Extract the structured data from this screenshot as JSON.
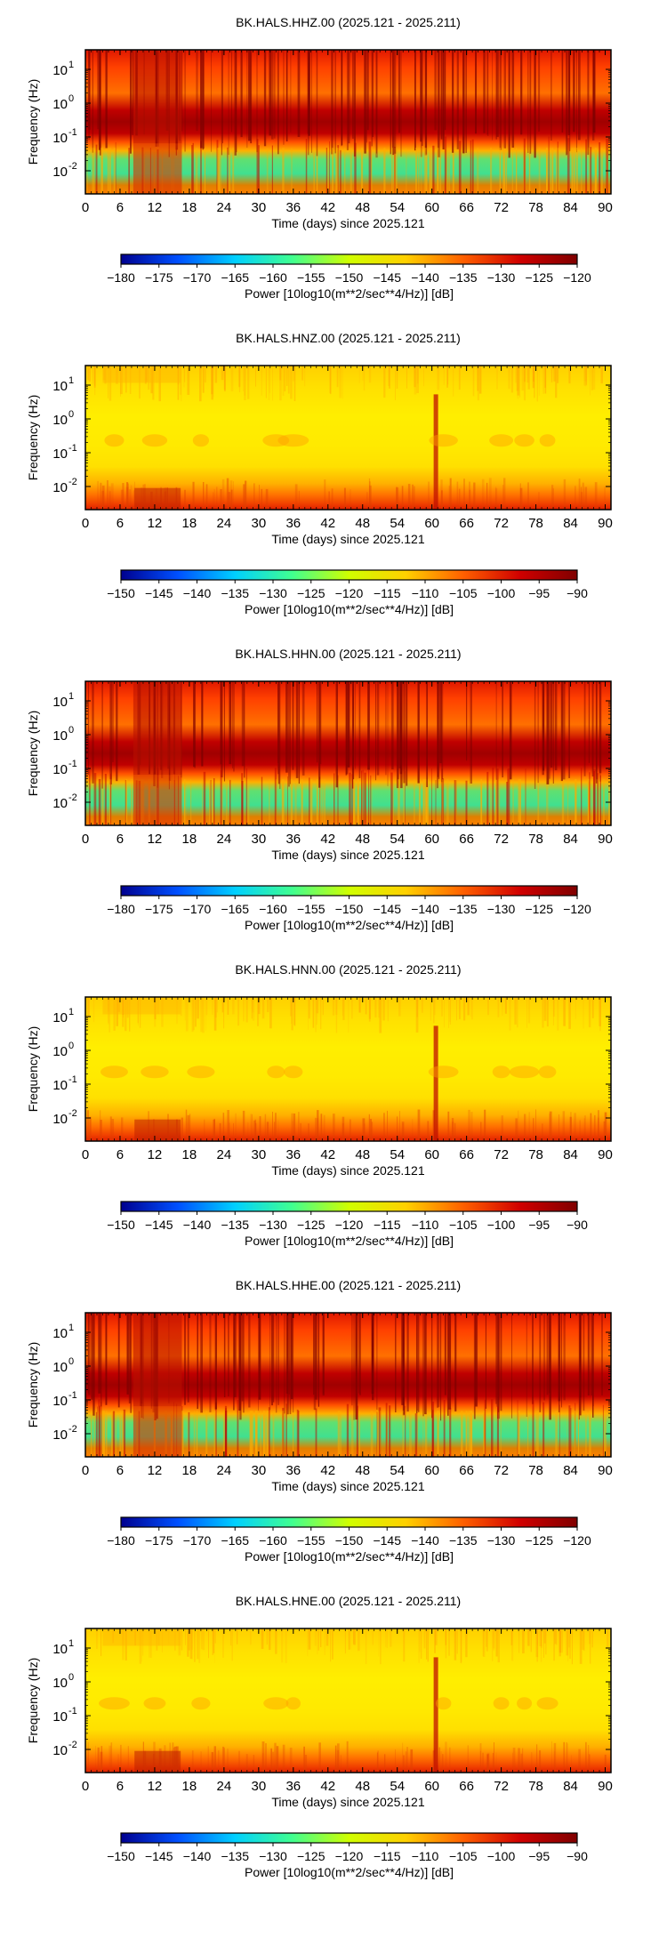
{
  "chart_data": [
    {
      "type": "heatmap",
      "title": "BK.HALS.HHZ.00 (2025.121 - 2025.211)",
      "xlabel": "Time (days) since 2025.121",
      "ylabel": "Frequency (Hz)",
      "xlim": [
        0,
        91
      ],
      "x_ticks": [
        "0",
        "6",
        "12",
        "18",
        "24",
        "30",
        "36",
        "42",
        "48",
        "54",
        "60",
        "66",
        "72",
        "78",
        "84",
        "90"
      ],
      "y_scale": "log",
      "y_ticks": [
        {
          "exp": "1"
        },
        {
          "exp": "0"
        },
        {
          "exp": "-1"
        },
        {
          "exp": "-2"
        }
      ],
      "y_tick_base": "10",
      "colorbar": {
        "label": "Power [10log10(m**2/sec**4/Hz)] [dB]",
        "ticks": [
          "−180",
          "−175",
          "−170",
          "−165",
          "−160",
          "−155",
          "−150",
          "−145",
          "−140",
          "−135",
          "−130",
          "−125",
          "−120"
        ],
        "colormap": [
          "#00008f",
          "#0050ff",
          "#00d0ff",
          "#40ff90",
          "#d0ff00",
          "#ffd000",
          "#ff6000",
          "#d00000",
          "#800000"
        ]
      },
      "style": "red"
    },
    {
      "type": "heatmap",
      "title": "BK.HALS.HNZ.00 (2025.121 - 2025.211)",
      "xlabel": "Time (days) since 2025.121",
      "ylabel": "Frequency (Hz)",
      "xlim": [
        0,
        91
      ],
      "x_ticks": [
        "0",
        "6",
        "12",
        "18",
        "24",
        "30",
        "36",
        "42",
        "48",
        "54",
        "60",
        "66",
        "72",
        "78",
        "84",
        "90"
      ],
      "y_scale": "log",
      "y_ticks": [
        {
          "exp": "1"
        },
        {
          "exp": "0"
        },
        {
          "exp": "-1"
        },
        {
          "exp": "-2"
        }
      ],
      "y_tick_base": "10",
      "colorbar": {
        "label": "Power [10log10(m**2/sec**4/Hz)] [dB]",
        "ticks": [
          "−150",
          "−145",
          "−140",
          "−135",
          "−130",
          "−125",
          "−120",
          "−115",
          "−110",
          "−105",
          "−100",
          "−95",
          "−90"
        ],
        "colormap": [
          "#00008f",
          "#0050ff",
          "#00d0ff",
          "#40ff90",
          "#d0ff00",
          "#ffd000",
          "#ff6000",
          "#d00000",
          "#800000"
        ]
      },
      "style": "yellow"
    },
    {
      "type": "heatmap",
      "title": "BK.HALS.HHN.00 (2025.121 - 2025.211)",
      "xlabel": "Time (days) since 2025.121",
      "ylabel": "Frequency (Hz)",
      "xlim": [
        0,
        91
      ],
      "x_ticks": [
        "0",
        "6",
        "12",
        "18",
        "24",
        "30",
        "36",
        "42",
        "48",
        "54",
        "60",
        "66",
        "72",
        "78",
        "84",
        "90"
      ],
      "y_scale": "log",
      "y_ticks": [
        {
          "exp": "1"
        },
        {
          "exp": "0"
        },
        {
          "exp": "-1"
        },
        {
          "exp": "-2"
        }
      ],
      "y_tick_base": "10",
      "colorbar": {
        "label": "Power [10log10(m**2/sec**4/Hz)] [dB]",
        "ticks": [
          "−180",
          "−175",
          "−170",
          "−165",
          "−160",
          "−155",
          "−150",
          "−145",
          "−140",
          "−135",
          "−130",
          "−125",
          "−120"
        ],
        "colormap": [
          "#00008f",
          "#0050ff",
          "#00d0ff",
          "#40ff90",
          "#d0ff00",
          "#ffd000",
          "#ff6000",
          "#d00000",
          "#800000"
        ]
      },
      "style": "red"
    },
    {
      "type": "heatmap",
      "title": "BK.HALS.HNN.00 (2025.121 - 2025.211)",
      "xlabel": "Time (days) since 2025.121",
      "ylabel": "Frequency (Hz)",
      "xlim": [
        0,
        91
      ],
      "x_ticks": [
        "0",
        "6",
        "12",
        "18",
        "24",
        "30",
        "36",
        "42",
        "48",
        "54",
        "60",
        "66",
        "72",
        "78",
        "84",
        "90"
      ],
      "y_scale": "log",
      "y_ticks": [
        {
          "exp": "1"
        },
        {
          "exp": "0"
        },
        {
          "exp": "-1"
        },
        {
          "exp": "-2"
        }
      ],
      "y_tick_base": "10",
      "colorbar": {
        "label": "Power [10log10(m**2/sec**4/Hz)] [dB]",
        "ticks": [
          "−150",
          "−145",
          "−140",
          "−135",
          "−130",
          "−125",
          "−120",
          "−115",
          "−110",
          "−105",
          "−100",
          "−95",
          "−90"
        ],
        "colormap": [
          "#00008f",
          "#0050ff",
          "#00d0ff",
          "#40ff90",
          "#d0ff00",
          "#ffd000",
          "#ff6000",
          "#d00000",
          "#800000"
        ]
      },
      "style": "yellow"
    },
    {
      "type": "heatmap",
      "title": "BK.HALS.HHE.00 (2025.121 - 2025.211)",
      "xlabel": "Time (days) since 2025.121",
      "ylabel": "Frequency (Hz)",
      "xlim": [
        0,
        91
      ],
      "x_ticks": [
        "0",
        "6",
        "12",
        "18",
        "24",
        "30",
        "36",
        "42",
        "48",
        "54",
        "60",
        "66",
        "72",
        "78",
        "84",
        "90"
      ],
      "y_scale": "log",
      "y_ticks": [
        {
          "exp": "1"
        },
        {
          "exp": "0"
        },
        {
          "exp": "-1"
        },
        {
          "exp": "-2"
        }
      ],
      "y_tick_base": "10",
      "colorbar": {
        "label": "Power [10log10(m**2/sec**4/Hz)] [dB]",
        "ticks": [
          "−180",
          "−175",
          "−170",
          "−165",
          "−160",
          "−155",
          "−150",
          "−145",
          "−140",
          "−135",
          "−130",
          "−125",
          "−120"
        ],
        "colormap": [
          "#00008f",
          "#0050ff",
          "#00d0ff",
          "#40ff90",
          "#d0ff00",
          "#ffd000",
          "#ff6000",
          "#d00000",
          "#800000"
        ]
      },
      "style": "red"
    },
    {
      "type": "heatmap",
      "title": "BK.HALS.HNE.00 (2025.121 - 2025.211)",
      "xlabel": "Time (days) since 2025.121",
      "ylabel": "Frequency (Hz)",
      "xlim": [
        0,
        91
      ],
      "x_ticks": [
        "0",
        "6",
        "12",
        "18",
        "24",
        "30",
        "36",
        "42",
        "48",
        "54",
        "60",
        "66",
        "72",
        "78",
        "84",
        "90"
      ],
      "y_scale": "log",
      "y_ticks": [
        {
          "exp": "1"
        },
        {
          "exp": "0"
        },
        {
          "exp": "-1"
        },
        {
          "exp": "-2"
        }
      ],
      "y_tick_base": "10",
      "colorbar": {
        "label": "Power [10log10(m**2/sec**4/Hz)] [dB]",
        "ticks": [
          "−150",
          "−145",
          "−140",
          "−135",
          "−130",
          "−125",
          "−120",
          "−115",
          "−110",
          "−105",
          "−100",
          "−95",
          "−90"
        ],
        "colormap": [
          "#00008f",
          "#0050ff",
          "#00d0ff",
          "#40ff90",
          "#d0ff00",
          "#ffd000",
          "#ff6000",
          "#d00000",
          "#800000"
        ]
      },
      "style": "yellow"
    }
  ]
}
